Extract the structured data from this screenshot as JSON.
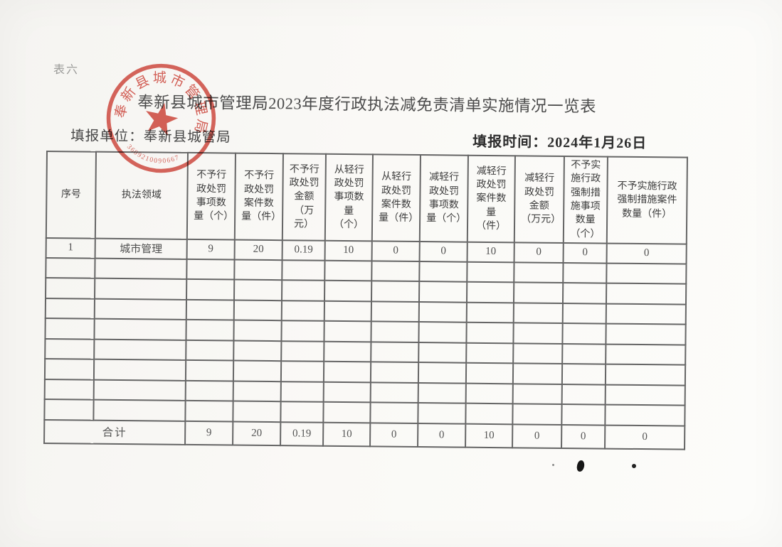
{
  "page": {
    "form_label": "表六",
    "title": "奉新县城市管理局2023年度行政执法减免责清单实施情况一览表",
    "reporting_unit_label": "填报单位：",
    "reporting_unit_value": "奉新县城管局",
    "reporting_date_label": "填报时间：",
    "reporting_date_value": "2024年1月26日"
  },
  "stamp": {
    "org_name": "奉新县城市管理局",
    "serial_number": "3609210090667"
  },
  "colors": {
    "stamp_red": "#cb453b",
    "table_border": "#656565",
    "paper": "#faf9f6"
  },
  "table": {
    "headers": [
      "序号",
      "执法领域",
      "不予行政处罚事项数量（个）",
      "不予行政处罚案件数量（件）",
      "不予行政处罚金额（万元）",
      "从轻行政处罚事项数量（个）",
      "从轻行政处罚案件数量（件）",
      "减轻行政处罚事项数量（个）",
      "减轻行政处罚案件数量（件）",
      "减轻行政处罚金额（万元）",
      "不予实施行政强制措施事项数量（个）",
      "不予实施行政强制措施案件数量（件）"
    ],
    "rows": [
      [
        "1",
        "城市管理",
        "9",
        "20",
        "0.19",
        "10",
        "0",
        "0",
        "10",
        "0",
        "0",
        "0"
      ]
    ],
    "empty_row_count": 8,
    "total_row": {
      "label": "合计",
      "values": [
        "9",
        "20",
        "0.19",
        "10",
        "0",
        "0",
        "10",
        "0",
        "0",
        "0"
      ]
    }
  }
}
